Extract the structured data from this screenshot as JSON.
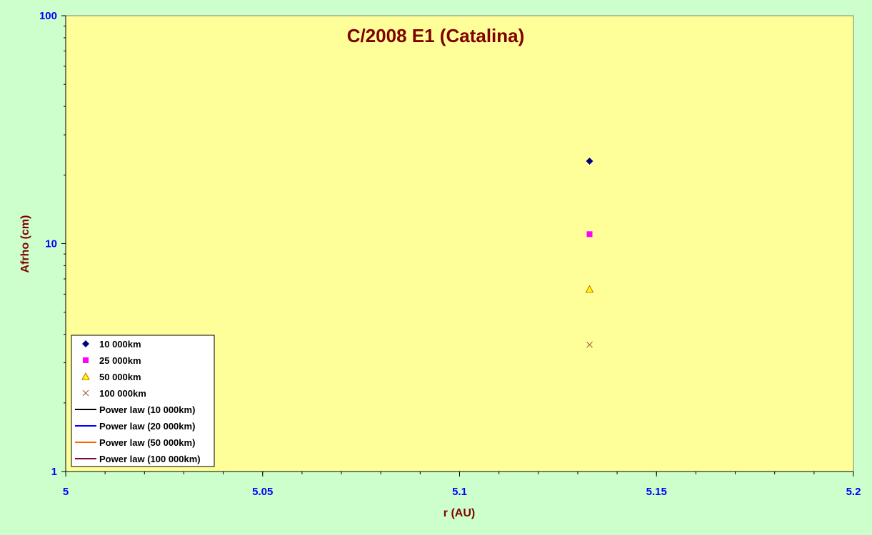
{
  "chart_data": {
    "type": "scatter",
    "title": "C/2008 E1 (Catalina)",
    "xlabel": "r (AU)",
    "ylabel": "Afrho (cm)",
    "xlim": [
      5,
      5.2
    ],
    "ylim": [
      1,
      100
    ],
    "yscale": "log",
    "x_ticks": [
      5,
      5.05,
      5.1,
      5.15,
      5.2
    ],
    "x_tick_labels": [
      "5",
      "5.05",
      "5.1",
      "5.15",
      "5.2"
    ],
    "y_ticks": [
      1,
      10,
      100
    ],
    "y_tick_labels": [
      "1",
      "10",
      "100"
    ],
    "grid": false,
    "legend_position": "bottom-left",
    "series": [
      {
        "name": "10 000km",
        "marker": "diamond",
        "color": "#000080",
        "x": [
          5.133
        ],
        "y": [
          23
        ]
      },
      {
        "name": "25 000km",
        "marker": "square",
        "color": "#ff00ff",
        "x": [
          5.133
        ],
        "y": [
          11
        ]
      },
      {
        "name": "50 000km",
        "marker": "triangle",
        "color": "#ffff00",
        "edge_color": "#cc6600",
        "x": [
          5.133
        ],
        "y": [
          6.3
        ]
      },
      {
        "name": "100 000km",
        "marker": "x",
        "color": "#a0522d",
        "x": [
          5.133
        ],
        "y": [
          3.6
        ]
      },
      {
        "name": "Power law (10 000km)",
        "marker": "line",
        "color": "#000000",
        "x": [],
        "y": []
      },
      {
        "name": "Power law (20 000km)",
        "marker": "line",
        "color": "#0000ff",
        "x": [],
        "y": []
      },
      {
        "name": "Power law (50 000km)",
        "marker": "line",
        "color": "#ff6600",
        "x": [],
        "y": []
      },
      {
        "name": "Power law (100 000km)",
        "marker": "line",
        "color": "#800040",
        "x": [],
        "y": []
      }
    ],
    "colors": {
      "page_background": "#ccffcc",
      "plot_background": "#ffff99",
      "axis_text": "#0000ff",
      "title_text": "#800000"
    }
  }
}
